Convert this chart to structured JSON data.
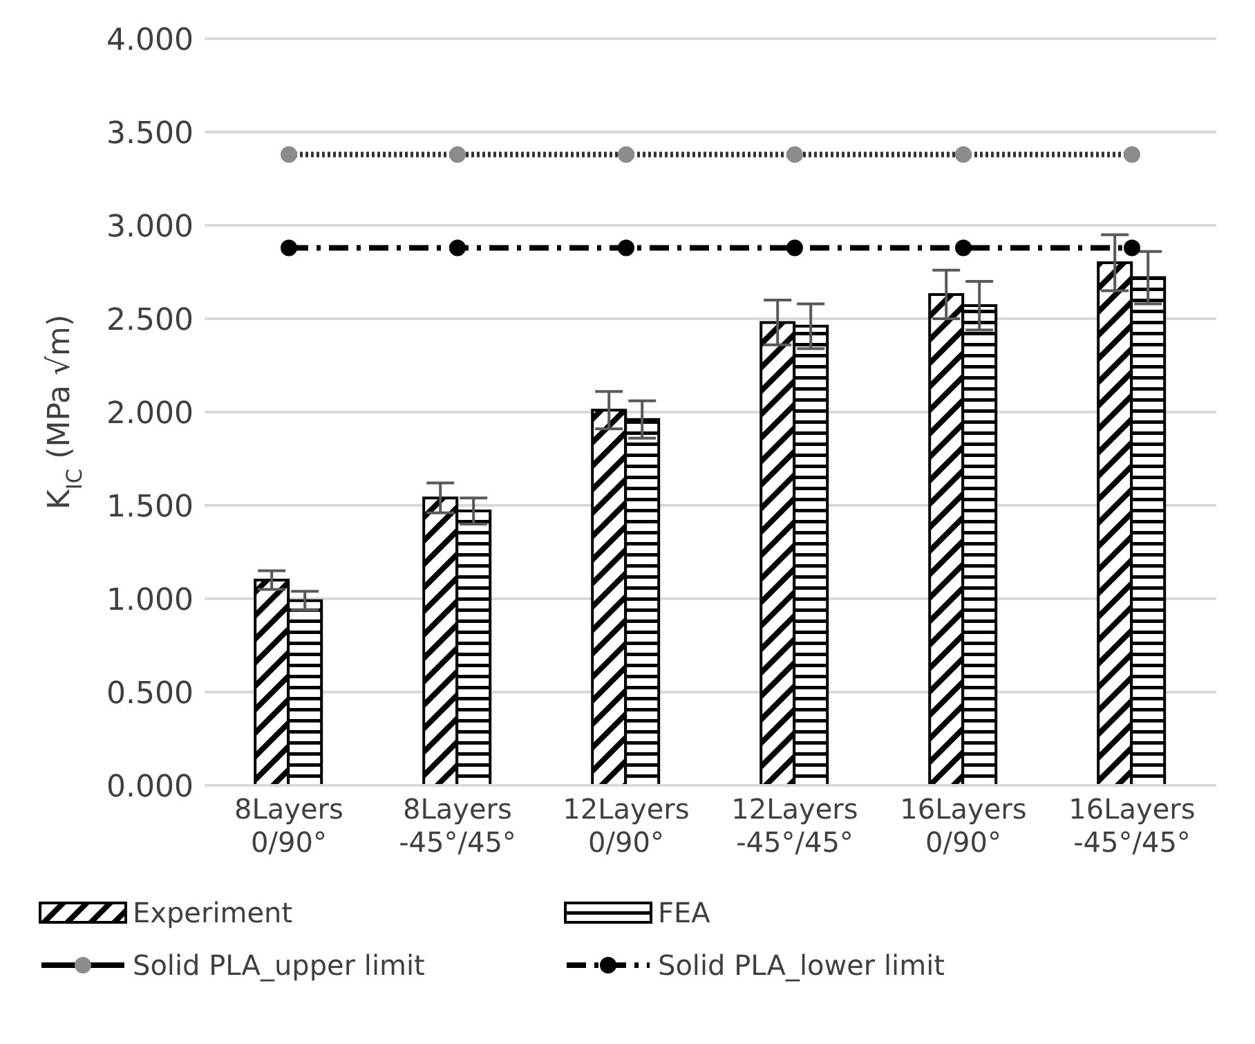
{
  "chart_data": {
    "type": "bar",
    "ylabel": "K$_{IC}$ (MPa √m)",
    "categories": [
      "8Layers\n0/90°",
      "8Layers\n-45°/45°",
      "12Layers\n0/90°",
      "12Layers\n-45°/45°",
      "16Layers\n0/90°",
      "16Layers\n-45°/45°"
    ],
    "series": [
      {
        "name": "Experiment",
        "color": "#000000",
        "values": [
          1.1,
          1.54,
          2.01,
          2.48,
          2.63,
          2.8
        ],
        "errors": [
          0.05,
          0.08,
          0.1,
          0.12,
          0.13,
          0.15
        ]
      },
      {
        "name": "FEA",
        "color": "#000000",
        "values": [
          0.99,
          1.47,
          1.96,
          2.46,
          2.57,
          2.72
        ],
        "errors": [
          0.05,
          0.07,
          0.1,
          0.12,
          0.13,
          0.14
        ]
      },
      {
        "name": "Solid PLA_upper limit",
        "type": "line",
        "color": "#8c8c8c",
        "line_style": "dotted",
        "marker": "circle",
        "values": [
          3.38,
          3.38,
          3.38,
          3.38,
          3.38,
          3.38
        ]
      },
      {
        "name": "Solid PLA_lower limit",
        "type": "line",
        "color": "#000000",
        "line_style": "dashed",
        "marker": "circle",
        "values": [
          2.88,
          2.88,
          2.88,
          2.88,
          2.88,
          2.88
        ]
      }
    ],
    "ylim": [
      0,
      4
    ],
    "yticks": [
      {
        "value": 0,
        "label": "0.000"
      },
      {
        "value": 0.5,
        "label": "0.500"
      },
      {
        "value": 1,
        "label": "1.000"
      },
      {
        "value": 1.5,
        "label": "1.500"
      },
      {
        "value": 2,
        "label": "2.000"
      },
      {
        "value": 2.5,
        "label": "2.500"
      },
      {
        "value": 3,
        "label": "3.000"
      },
      {
        "value": 3.5,
        "label": "3.500"
      },
      {
        "value": 4,
        "label": "4.000"
      }
    ],
    "grid": "y",
    "legend": "bottom"
  }
}
